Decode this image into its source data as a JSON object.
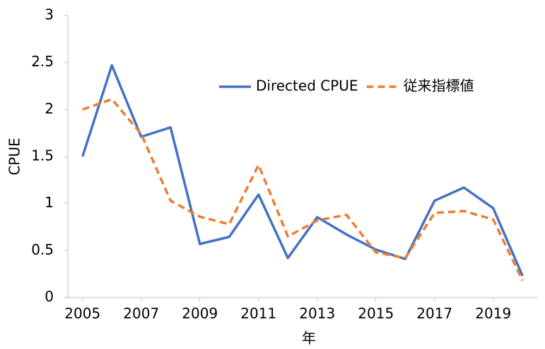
{
  "chart_data": {
    "type": "line",
    "xlabel": "年",
    "ylabel": "CPUE",
    "x": [
      2005,
      2006,
      2007,
      2008,
      2009,
      2010,
      2011,
      2012,
      2013,
      2014,
      2015,
      2016,
      2017,
      2018,
      2019,
      2020
    ],
    "series": [
      {
        "name": "Directed CPUE",
        "color": "#4472c4",
        "dash": false,
        "values": [
          1.5,
          2.47,
          1.71,
          1.81,
          0.57,
          0.645,
          1.095,
          0.42,
          0.855,
          0.67,
          0.51,
          0.41,
          1.03,
          1.17,
          0.95,
          0.23
        ]
      },
      {
        "name": "従来指標値",
        "color": "#ed7d31",
        "dash": true,
        "values": [
          2.0,
          2.11,
          1.74,
          1.03,
          0.86,
          0.78,
          1.41,
          0.65,
          0.82,
          0.88,
          0.48,
          0.42,
          0.9,
          0.92,
          0.83,
          0.18
        ]
      }
    ],
    "xlim": [
      2004.5,
      2020.5
    ],
    "xticks": [
      2005,
      2007,
      2009,
      2011,
      2013,
      2015,
      2017,
      2019
    ],
    "ylim": [
      0,
      3
    ],
    "yticks": [
      0,
      0.5,
      1,
      1.5,
      2,
      2.5,
      3
    ],
    "grid": false,
    "legend": "upper right"
  }
}
